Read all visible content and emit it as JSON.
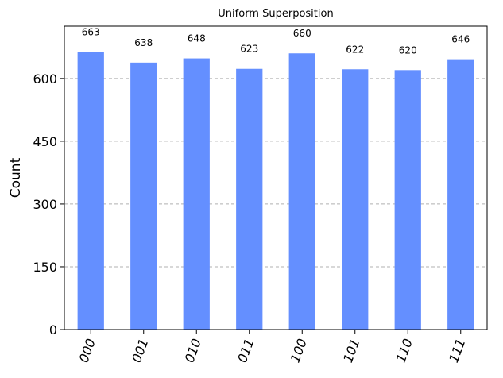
{
  "chart_data": {
    "type": "bar",
    "title": "Uniform Superposition",
    "xlabel": "",
    "ylabel": "Count",
    "categories": [
      "000",
      "001",
      "010",
      "011",
      "100",
      "101",
      "110",
      "111"
    ],
    "values": [
      663,
      638,
      648,
      623,
      660,
      622,
      620,
      646
    ],
    "data_labels": [
      "663",
      "638",
      "648",
      "623",
      "660",
      "622",
      "620",
      "646"
    ],
    "ylim": [
      0,
      725
    ],
    "yticks": [
      0,
      150,
      300,
      450,
      600
    ],
    "ytick_labels": [
      "0",
      "150",
      "300",
      "450",
      "600"
    ],
    "grid": "y-dashed",
    "bar_color": "#648fff",
    "grid_color": "#b0b0b0"
  }
}
